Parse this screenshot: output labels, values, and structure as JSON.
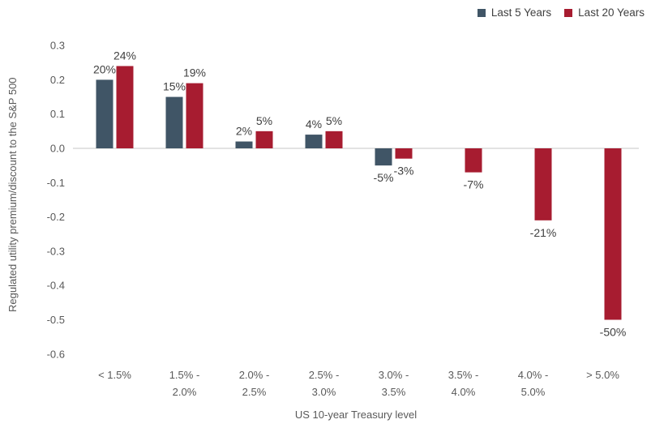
{
  "chart_data": {
    "type": "bar",
    "title": "",
    "xlabel": "US 10-year Treasury level",
    "ylabel": "Regulated utility premium/discount to the S&P 500",
    "categories": [
      "< 1.5%",
      "1.5% - 2.0%",
      "2.0% - 2.5%",
      "2.5% - 3.0%",
      "3.0% - 3.5%",
      "3.5% - 4.0%",
      "4.0% - 5.0%",
      "> 5.0%"
    ],
    "category_tick_lines": [
      [
        "< 1.5%"
      ],
      [
        "1.5% -",
        "2.0%"
      ],
      [
        "2.0% -",
        "2.5%"
      ],
      [
        "2.5% -",
        "3.0%"
      ],
      [
        "3.0% -",
        "3.5%"
      ],
      [
        "3.5% -",
        "4.0%"
      ],
      [
        "4.0% -",
        "5.0%"
      ],
      [
        "> 5.0%"
      ]
    ],
    "series": [
      {
        "name": "Last 5 Years",
        "color": "#405566",
        "values": [
          0.2,
          0.15,
          0.02,
          0.04,
          -0.05,
          null,
          null,
          null
        ],
        "data_labels": [
          "20%",
          "15%",
          "2%",
          "4%",
          "-5%",
          "",
          "",
          ""
        ]
      },
      {
        "name": "Last 20 Years",
        "color": "#A71C30",
        "values": [
          0.24,
          0.19,
          0.05,
          0.05,
          -0.03,
          -0.07,
          -0.21,
          -0.5
        ],
        "data_labels": [
          "24%",
          "19%",
          "5%",
          "5%",
          "-3%",
          "-7%",
          "-21%",
          "-50%"
        ]
      }
    ],
    "ylim": [
      -0.6,
      0.3
    ],
    "yticks": [
      0.3,
      0.2,
      0.1,
      0.0,
      -0.1,
      -0.2,
      -0.3,
      -0.4,
      -0.5,
      -0.6
    ],
    "ytick_labels": [
      "0.3",
      "0.2",
      "0.1",
      "0.0",
      "-0.1",
      "-0.2",
      "-0.3",
      "-0.4",
      "-0.5",
      "-0.6"
    ],
    "grid": "zero-baseline-only",
    "legend_position": "top-right"
  },
  "colors": {
    "background": "#FFFFFF",
    "series_last_5_years": "#405566",
    "series_last_20_years": "#A71C30",
    "axis_text": "#595959",
    "data_label_text": "#404040",
    "baseline": "#D9D9D9"
  }
}
